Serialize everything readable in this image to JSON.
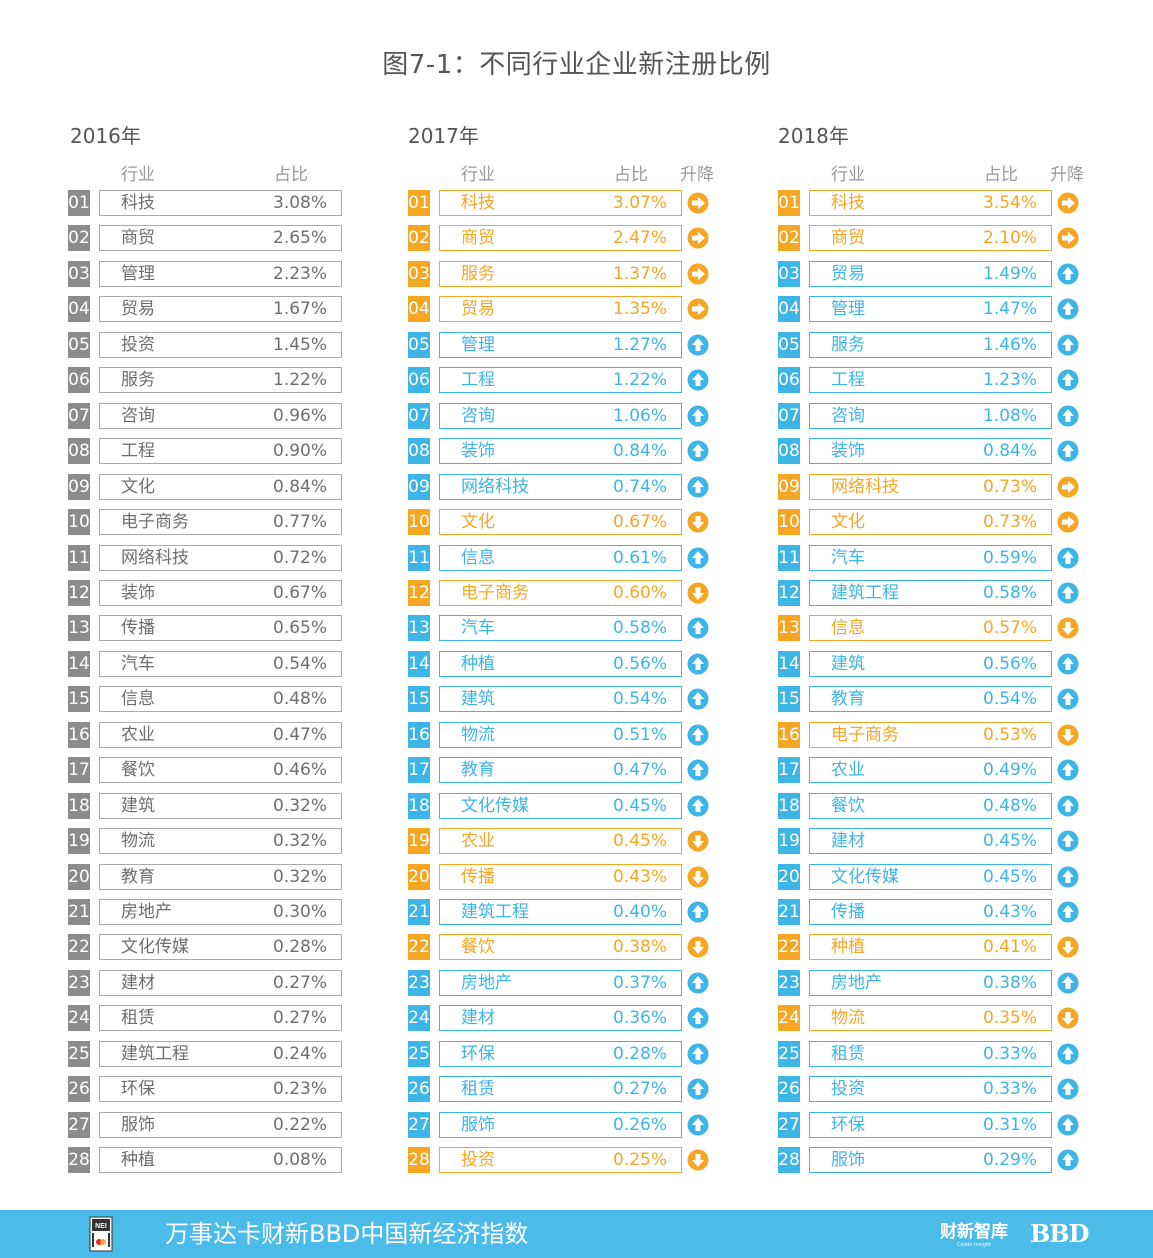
{
  "title": "图7-1：不同行业企业新注册比例",
  "headers": {
    "industry": "行业",
    "share": "占比",
    "change": "升降"
  },
  "colors": {
    "unchanged_gray": "#8c8c8c",
    "up_blue": "#3db5e6",
    "down_orange": "#f5a623",
    "footer_bg": "#4bbbe9"
  },
  "tables": [
    {
      "year": "2016年",
      "rows": [
        {
          "rank": "01",
          "name": "科技",
          "pct": "3.08%"
        },
        {
          "rank": "02",
          "name": "商贸",
          "pct": "2.65%"
        },
        {
          "rank": "03",
          "name": "管理",
          "pct": "2.23%"
        },
        {
          "rank": "04",
          "name": "贸易",
          "pct": "1.67%"
        },
        {
          "rank": "05",
          "name": "投资",
          "pct": "1.45%"
        },
        {
          "rank": "06",
          "name": "服务",
          "pct": "1.22%"
        },
        {
          "rank": "07",
          "name": "咨询",
          "pct": "0.96%"
        },
        {
          "rank": "08",
          "name": "工程",
          "pct": "0.90%"
        },
        {
          "rank": "09",
          "name": "文化",
          "pct": "0.84%"
        },
        {
          "rank": "10",
          "name": "电子商务",
          "pct": "0.77%"
        },
        {
          "rank": "11",
          "name": "网络科技",
          "pct": "0.72%"
        },
        {
          "rank": "12",
          "name": "装饰",
          "pct": "0.67%"
        },
        {
          "rank": "13",
          "name": "传播",
          "pct": "0.65%"
        },
        {
          "rank": "14",
          "name": "汽车",
          "pct": "0.54%"
        },
        {
          "rank": "15",
          "name": "信息",
          "pct": "0.48%"
        },
        {
          "rank": "16",
          "name": "农业",
          "pct": "0.47%"
        },
        {
          "rank": "17",
          "name": "餐饮",
          "pct": "0.46%"
        },
        {
          "rank": "18",
          "name": "建筑",
          "pct": "0.32%"
        },
        {
          "rank": "19",
          "name": "物流",
          "pct": "0.32%"
        },
        {
          "rank": "20",
          "name": "教育",
          "pct": "0.32%"
        },
        {
          "rank": "21",
          "name": "房地产",
          "pct": "0.30%"
        },
        {
          "rank": "22",
          "name": "文化传媒",
          "pct": "0.28%"
        },
        {
          "rank": "23",
          "name": "建材",
          "pct": "0.27%"
        },
        {
          "rank": "24",
          "name": "租赁",
          "pct": "0.27%"
        },
        {
          "rank": "25",
          "name": "建筑工程",
          "pct": "0.24%"
        },
        {
          "rank": "26",
          "name": "环保",
          "pct": "0.23%"
        },
        {
          "rank": "27",
          "name": "服饰",
          "pct": "0.22%"
        },
        {
          "rank": "28",
          "name": "种植",
          "pct": "0.08%"
        }
      ]
    },
    {
      "year": "2017年",
      "rows": [
        {
          "rank": "01",
          "name": "科技",
          "pct": "3.07%",
          "trend": "same"
        },
        {
          "rank": "02",
          "name": "商贸",
          "pct": "2.47%",
          "trend": "same"
        },
        {
          "rank": "03",
          "name": "服务",
          "pct": "1.37%",
          "trend": "same"
        },
        {
          "rank": "04",
          "name": "贸易",
          "pct": "1.35%",
          "trend": "same"
        },
        {
          "rank": "05",
          "name": "管理",
          "pct": "1.27%",
          "trend": "up"
        },
        {
          "rank": "06",
          "name": "工程",
          "pct": "1.22%",
          "trend": "up"
        },
        {
          "rank": "07",
          "name": "咨询",
          "pct": "1.06%",
          "trend": "up"
        },
        {
          "rank": "08",
          "name": "装饰",
          "pct": "0.84%",
          "trend": "up"
        },
        {
          "rank": "09",
          "name": "网络科技",
          "pct": "0.74%",
          "trend": "up"
        },
        {
          "rank": "10",
          "name": "文化",
          "pct": "0.67%",
          "trend": "down"
        },
        {
          "rank": "11",
          "name": "信息",
          "pct": "0.61%",
          "trend": "up"
        },
        {
          "rank": "12",
          "name": "电子商务",
          "pct": "0.60%",
          "trend": "down"
        },
        {
          "rank": "13",
          "name": "汽车",
          "pct": "0.58%",
          "trend": "up"
        },
        {
          "rank": "14",
          "name": "种植",
          "pct": "0.56%",
          "trend": "up"
        },
        {
          "rank": "15",
          "name": "建筑",
          "pct": "0.54%",
          "trend": "up"
        },
        {
          "rank": "16",
          "name": "物流",
          "pct": "0.51%",
          "trend": "up"
        },
        {
          "rank": "17",
          "name": "教育",
          "pct": "0.47%",
          "trend": "up"
        },
        {
          "rank": "18",
          "name": "文化传媒",
          "pct": "0.45%",
          "trend": "up"
        },
        {
          "rank": "19",
          "name": "农业",
          "pct": "0.45%",
          "trend": "down"
        },
        {
          "rank": "20",
          "name": "传播",
          "pct": "0.43%",
          "trend": "down"
        },
        {
          "rank": "21",
          "name": "建筑工程",
          "pct": "0.40%",
          "trend": "up"
        },
        {
          "rank": "22",
          "name": "餐饮",
          "pct": "0.38%",
          "trend": "down"
        },
        {
          "rank": "23",
          "name": "房地产",
          "pct": "0.37%",
          "trend": "up"
        },
        {
          "rank": "24",
          "name": "建材",
          "pct": "0.36%",
          "trend": "up"
        },
        {
          "rank": "25",
          "name": "环保",
          "pct": "0.28%",
          "trend": "up"
        },
        {
          "rank": "26",
          "name": "租赁",
          "pct": "0.27%",
          "trend": "up"
        },
        {
          "rank": "27",
          "name": "服饰",
          "pct": "0.26%",
          "trend": "up"
        },
        {
          "rank": "28",
          "name": "投资",
          "pct": "0.25%",
          "trend": "down"
        }
      ]
    },
    {
      "year": "2018年",
      "rows": [
        {
          "rank": "01",
          "name": "科技",
          "pct": "3.54%",
          "trend": "same"
        },
        {
          "rank": "02",
          "name": "商贸",
          "pct": "2.10%",
          "trend": "same"
        },
        {
          "rank": "03",
          "name": "贸易",
          "pct": "1.49%",
          "trend": "up"
        },
        {
          "rank": "04",
          "name": "管理",
          "pct": "1.47%",
          "trend": "up"
        },
        {
          "rank": "05",
          "name": "服务",
          "pct": "1.46%",
          "trend": "up"
        },
        {
          "rank": "06",
          "name": "工程",
          "pct": "1.23%",
          "trend": "up"
        },
        {
          "rank": "07",
          "name": "咨询",
          "pct": "1.08%",
          "trend": "up"
        },
        {
          "rank": "08",
          "name": "装饰",
          "pct": "0.84%",
          "trend": "up"
        },
        {
          "rank": "09",
          "name": "网络科技",
          "pct": "0.73%",
          "trend": "same"
        },
        {
          "rank": "10",
          "name": "文化",
          "pct": "0.73%",
          "trend": "same"
        },
        {
          "rank": "11",
          "name": "汽车",
          "pct": "0.59%",
          "trend": "up"
        },
        {
          "rank": "12",
          "name": "建筑工程",
          "pct": "0.58%",
          "trend": "up"
        },
        {
          "rank": "13",
          "name": "信息",
          "pct": "0.57%",
          "trend": "down"
        },
        {
          "rank": "14",
          "name": "建筑",
          "pct": "0.56%",
          "trend": "up"
        },
        {
          "rank": "15",
          "name": "教育",
          "pct": "0.54%",
          "trend": "up"
        },
        {
          "rank": "16",
          "name": "电子商务",
          "pct": "0.53%",
          "trend": "down"
        },
        {
          "rank": "17",
          "name": "农业",
          "pct": "0.49%",
          "trend": "up"
        },
        {
          "rank": "18",
          "name": "餐饮",
          "pct": "0.48%",
          "trend": "up"
        },
        {
          "rank": "19",
          "name": "建材",
          "pct": "0.45%",
          "trend": "up"
        },
        {
          "rank": "20",
          "name": "文化传媒",
          "pct": "0.45%",
          "trend": "up"
        },
        {
          "rank": "21",
          "name": "传播",
          "pct": "0.43%",
          "trend": "up"
        },
        {
          "rank": "22",
          "name": "种植",
          "pct": "0.41%",
          "trend": "down"
        },
        {
          "rank": "23",
          "name": "房地产",
          "pct": "0.38%",
          "trend": "up"
        },
        {
          "rank": "24",
          "name": "物流",
          "pct": "0.35%",
          "trend": "down"
        },
        {
          "rank": "25",
          "name": "租赁",
          "pct": "0.33%",
          "trend": "up"
        },
        {
          "rank": "26",
          "name": "投资",
          "pct": "0.33%",
          "trend": "up"
        },
        {
          "rank": "27",
          "name": "环保",
          "pct": "0.31%",
          "trend": "up"
        },
        {
          "rank": "28",
          "name": "服饰",
          "pct": "0.29%",
          "trend": "up"
        }
      ]
    }
  ],
  "footer": {
    "logo_icon": "nei-index-logo-icon",
    "title": "万事达卡财新BBD中国新经济指数",
    "brand": "财新智库",
    "brand_sub": "Caixin Insight",
    "bbd": "BBD"
  }
}
